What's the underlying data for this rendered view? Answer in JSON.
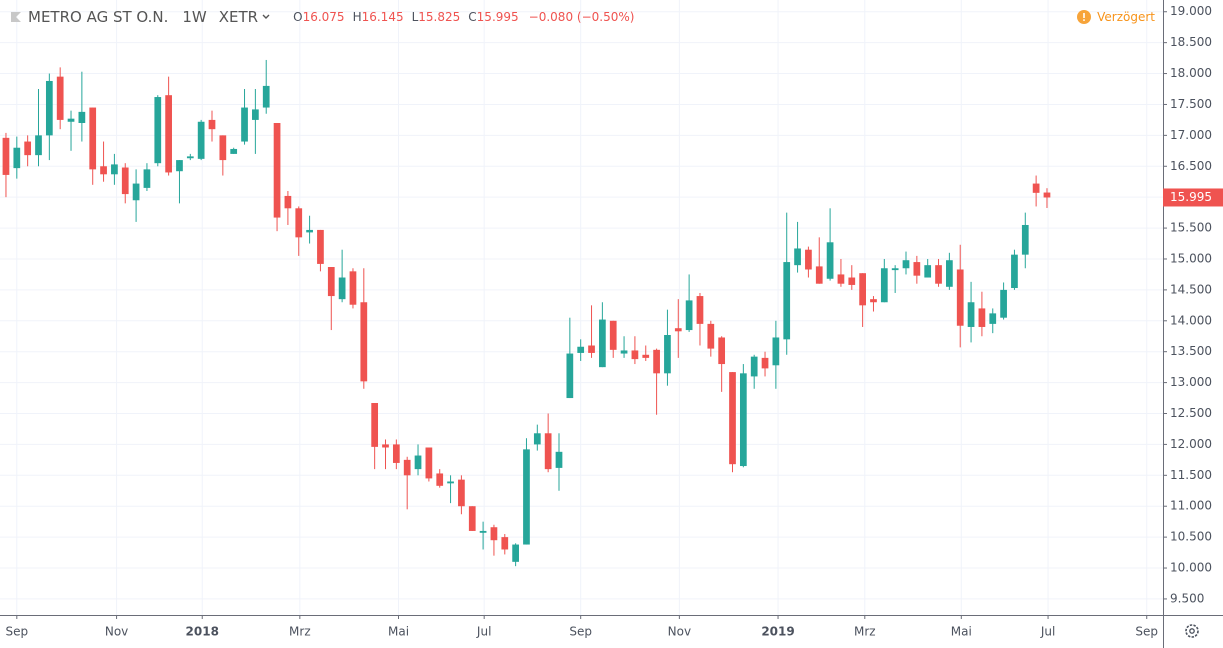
{
  "chart_data": {
    "type": "candlestick",
    "title": "METRO AG ST O.N.",
    "interval": "1W",
    "exchange": "XETR",
    "ohlc_letters": [
      "O",
      "H",
      "L",
      "C"
    ],
    "change": "−0.080 (−0.50%)",
    "status": "Verzögert",
    "up_color": "#26a69a",
    "down_color": "#ef5350",
    "grid": true,
    "open": [
      16.96,
      16.47,
      16.9,
      16.68,
      17.0,
      17.95,
      17.22,
      17.2,
      17.45,
      16.5,
      16.37,
      16.48,
      15.95,
      16.15,
      16.55,
      17.65,
      16.42,
      16.63,
      16.62,
      17.25,
      17.0,
      16.7,
      16.9,
      17.25,
      17.45,
      17.2,
      16.02,
      15.82,
      15.43,
      15.47,
      14.87,
      14.35,
      14.8,
      14.3,
      12.67,
      12.0,
      12.0,
      11.75,
      11.6,
      11.95,
      11.53,
      11.37,
      11.43,
      11.0,
      10.57,
      10.66,
      10.5,
      10.1,
      10.38,
      12.0,
      12.18,
      11.62,
      12.75,
      13.48,
      13.6,
      13.25,
      14.0,
      13.47,
      13.52,
      13.45,
      13.53,
      13.15,
      13.88,
      13.85,
      14.4,
      13.95,
      13.73,
      13.17,
      11.65,
      13.1,
      13.4,
      13.28,
      13.7,
      14.9,
      15.15,
      14.88,
      14.68,
      14.75,
      14.7,
      14.77,
      14.35,
      14.3,
      14.82,
      14.85,
      14.95,
      14.7,
      14.9,
      14.55,
      14.83,
      13.9,
      14.2,
      13.95,
      14.05,
      14.53,
      15.07,
      16.22,
      16.075
    ],
    "high": [
      17.04,
      16.98,
      17.0,
      17.75,
      18.0,
      18.1,
      17.4,
      18.03,
      17.45,
      16.9,
      16.7,
      16.55,
      16.45,
      16.55,
      17.65,
      17.95,
      16.6,
      16.7,
      17.25,
      17.4,
      17.0,
      16.8,
      17.75,
      17.75,
      18.22,
      17.2,
      16.1,
      15.85,
      15.7,
      15.47,
      14.87,
      15.15,
      14.85,
      14.85,
      12.67,
      12.08,
      12.08,
      11.8,
      12.0,
      11.95,
      11.6,
      11.5,
      11.5,
      11.0,
      10.75,
      10.7,
      10.55,
      10.4,
      12.1,
      12.32,
      12.5,
      12.18,
      14.05,
      13.7,
      14.25,
      14.3,
      14.0,
      13.75,
      13.75,
      13.6,
      13.55,
      14.18,
      14.35,
      14.75,
      14.45,
      14.0,
      13.75,
      13.17,
      13.3,
      13.45,
      13.5,
      14.0,
      15.75,
      15.6,
      15.2,
      15.35,
      15.82,
      15.0,
      14.9,
      14.77,
      14.4,
      15.0,
      14.9,
      15.12,
      15.05,
      15.0,
      15.0,
      15.1,
      15.23,
      14.63,
      14.47,
      14.2,
      14.62,
      15.15,
      15.75,
      16.35,
      16.145
    ],
    "low": [
      16.0,
      16.3,
      16.5,
      16.5,
      16.6,
      17.1,
      16.75,
      16.9,
      16.2,
      16.25,
      16.2,
      15.9,
      15.6,
      16.1,
      16.5,
      16.35,
      15.9,
      16.6,
      16.6,
      16.9,
      16.35,
      16.7,
      16.85,
      16.7,
      17.35,
      15.45,
      15.55,
      15.05,
      15.25,
      14.8,
      13.85,
      14.3,
      14.2,
      12.9,
      11.6,
      11.6,
      11.6,
      10.95,
      11.5,
      11.4,
      11.3,
      11.05,
      10.87,
      10.6,
      10.3,
      10.2,
      10.22,
      10.03,
      10.38,
      11.9,
      11.55,
      11.25,
      12.75,
      13.35,
      13.4,
      13.25,
      13.4,
      13.4,
      13.3,
      13.35,
      12.48,
      12.95,
      13.4,
      13.82,
      13.6,
      13.42,
      12.85,
      11.55,
      11.63,
      12.9,
      13.1,
      12.9,
      13.45,
      14.78,
      14.7,
      14.6,
      14.65,
      14.55,
      14.5,
      13.9,
      14.15,
      14.3,
      14.45,
      14.75,
      14.6,
      14.7,
      14.55,
      14.5,
      13.57,
      13.65,
      13.75,
      13.8,
      14.02,
      14.5,
      14.85,
      15.85,
      15.825
    ],
    "close": [
      16.36,
      16.8,
      16.68,
      17.0,
      17.88,
      17.25,
      17.27,
      17.38,
      16.45,
      16.37,
      16.53,
      16.05,
      16.22,
      16.45,
      17.62,
      16.4,
      16.6,
      16.66,
      17.22,
      17.1,
      16.6,
      16.78,
      17.45,
      17.42,
      17.8,
      15.67,
      15.82,
      15.35,
      15.47,
      14.92,
      14.4,
      14.7,
      14.26,
      13.02,
      11.96,
      11.95,
      11.7,
      11.5,
      11.82,
      11.45,
      11.33,
      11.4,
      11.0,
      10.6,
      10.6,
      10.45,
      10.3,
      10.38,
      11.92,
      12.18,
      11.6,
      11.88,
      13.47,
      13.58,
      13.48,
      14.02,
      13.53,
      13.52,
      13.38,
      13.4,
      13.15,
      13.77,
      13.83,
      14.33,
      13.95,
      13.55,
      13.3,
      11.68,
      13.15,
      13.42,
      13.23,
      13.73,
      14.95,
      15.17,
      14.83,
      14.6,
      15.27,
      14.6,
      14.58,
      14.25,
      14.3,
      14.85,
      14.85,
      14.98,
      14.73,
      14.9,
      14.6,
      14.98,
      13.92,
      14.3,
      13.9,
      14.12,
      14.5,
      15.07,
      15.55,
      16.07,
      15.995
    ],
    "xlim": [
      -0.55,
      106.7
    ],
    "xticks": [
      {
        "value": 1.0,
        "label": "Sep"
      },
      {
        "value": 10.2,
        "label": "Nov"
      },
      {
        "value": 18.1,
        "label": "2018"
      },
      {
        "value": 27.1,
        "label": "Mrz"
      },
      {
        "value": 36.2,
        "label": "Mai"
      },
      {
        "value": 44.1,
        "label": "Jul"
      },
      {
        "value": 53.0,
        "label": "Sep"
      },
      {
        "value": 62.1,
        "label": "Nov"
      },
      {
        "value": 71.2,
        "label": "2019"
      },
      {
        "value": 79.2,
        "label": "Mrz"
      },
      {
        "value": 88.1,
        "label": "Mai"
      },
      {
        "value": 96.1,
        "label": "Jul"
      },
      {
        "value": 105.2,
        "label": "Sep"
      }
    ],
    "ylim": [
      9.24,
      19.19
    ],
    "yticks": [
      {
        "value": 9.5,
        "label": "9.500"
      },
      {
        "value": 10,
        "label": "10.000"
      },
      {
        "value": 10.5,
        "label": "10.500"
      },
      {
        "value": 11,
        "label": "11.000"
      },
      {
        "value": 11.5,
        "label": "11.500"
      },
      {
        "value": 12,
        "label": "12.000"
      },
      {
        "value": 12.5,
        "label": "12.500"
      },
      {
        "value": 13,
        "label": "13.000"
      },
      {
        "value": 13.5,
        "label": "13.500"
      },
      {
        "value": 14,
        "label": "14.000"
      },
      {
        "value": 14.5,
        "label": "14.500"
      },
      {
        "value": 15,
        "label": "15.000"
      },
      {
        "value": 15.5,
        "label": "15.500"
      },
      {
        "value": 16,
        "label": "16.000"
      },
      {
        "value": 16.5,
        "label": "16.500"
      },
      {
        "value": 17,
        "label": "17.000"
      },
      {
        "value": 17.5,
        "label": "17.500"
      },
      {
        "value": 18,
        "label": "18.000"
      },
      {
        "value": 18.5,
        "label": "18.500"
      },
      {
        "value": 19,
        "label": "19.000"
      }
    ]
  }
}
